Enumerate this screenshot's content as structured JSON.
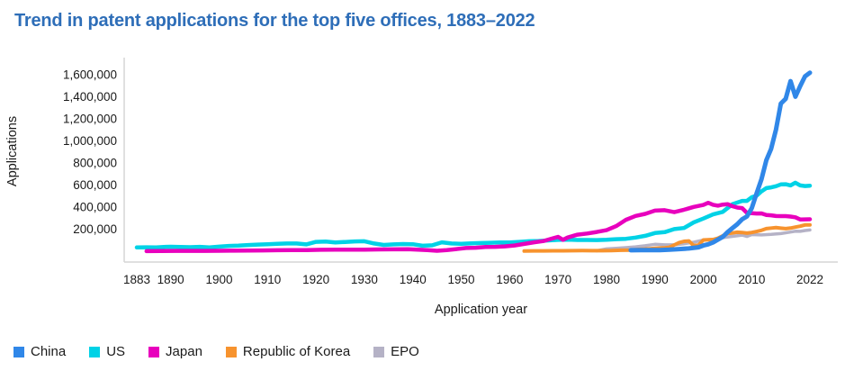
{
  "chart": {
    "title": "Trend in patent applications for the top five offices, 1883–2022",
    "xlabel": "Application year",
    "ylabel": "Applications"
  },
  "chart_data": {
    "type": "line",
    "title": "Trend in patent applications for the top five offices, 1883–2022",
    "xlabel": "Application year",
    "ylabel": "Applications",
    "x_range": [
      1883,
      2022
    ],
    "y_range": [
      0,
      1700000
    ],
    "grid": false,
    "legend_position": "bottom-left",
    "axis_color": "#d6d6d6",
    "text_color": "#1a1a1a",
    "title_color": "#2e6eb8",
    "y_ticks": [
      200000,
      400000,
      600000,
      800000,
      1000000,
      1200000,
      1400000,
      1600000
    ],
    "y_tick_labels": [
      "200,000",
      "400,000",
      "600,000",
      "800,000",
      "1,000,000",
      "1,200,000",
      "1,400,000",
      "1,600,000"
    ],
    "x_tick_years": [
      1883,
      1890,
      1900,
      1910,
      1920,
      1930,
      1940,
      1950,
      1960,
      1970,
      1980,
      1990,
      2000,
      2010,
      2022
    ],
    "x_tick_labels": [
      "1883",
      "1890",
      "1900",
      "1910",
      "1920",
      "1930",
      "1940",
      "1950",
      "1960",
      "1970",
      "1980",
      "1990",
      "2000",
      "2010",
      "2022"
    ],
    "z_order": [
      "US",
      "Japan",
      "EPO",
      "Republic of Korea",
      "China"
    ],
    "series": [
      {
        "name": "China",
        "color": "#3087e8",
        "stroke_width": 5,
        "points": [
          [
            1985,
            9000
          ],
          [
            1987,
            10000
          ],
          [
            1989,
            10000
          ],
          [
            1991,
            11000
          ],
          [
            1993,
            14000
          ],
          [
            1995,
            20000
          ],
          [
            1997,
            25000
          ],
          [
            1999,
            36000
          ],
          [
            2000,
            52000
          ],
          [
            2001,
            63000
          ],
          [
            2002,
            80000
          ],
          [
            2003,
            105000
          ],
          [
            2004,
            130000
          ],
          [
            2005,
            173000
          ],
          [
            2006,
            210000
          ],
          [
            2007,
            245000
          ],
          [
            2008,
            290000
          ],
          [
            2009,
            315000
          ],
          [
            2010,
            391000
          ],
          [
            2011,
            526000
          ],
          [
            2012,
            653000
          ],
          [
            2013,
            825000
          ],
          [
            2014,
            928000
          ],
          [
            2015,
            1102000
          ],
          [
            2016,
            1339000
          ],
          [
            2017,
            1382000
          ],
          [
            2018,
            1542000
          ],
          [
            2019,
            1401000
          ],
          [
            2020,
            1497000
          ],
          [
            2021,
            1586000
          ],
          [
            2022,
            1619000
          ]
        ]
      },
      {
        "name": "US",
        "color": "#00d2e6",
        "stroke_width": 4.5,
        "points": [
          [
            1883,
            34000
          ],
          [
            1885,
            36000
          ],
          [
            1887,
            35000
          ],
          [
            1889,
            40000
          ],
          [
            1890,
            41000
          ],
          [
            1892,
            38000
          ],
          [
            1894,
            37000
          ],
          [
            1896,
            40000
          ],
          [
            1898,
            34000
          ],
          [
            1900,
            42000
          ],
          [
            1902,
            48000
          ],
          [
            1904,
            51000
          ],
          [
            1906,
            56000
          ],
          [
            1908,
            60000
          ],
          [
            1910,
            64000
          ],
          [
            1912,
            68000
          ],
          [
            1914,
            70000
          ],
          [
            1916,
            70000
          ],
          [
            1918,
            62000
          ],
          [
            1920,
            85000
          ],
          [
            1922,
            87000
          ],
          [
            1924,
            80000
          ],
          [
            1926,
            84000
          ],
          [
            1928,
            89000
          ],
          [
            1930,
            91000
          ],
          [
            1932,
            70000
          ],
          [
            1934,
            57000
          ],
          [
            1936,
            62000
          ],
          [
            1938,
            65000
          ],
          [
            1940,
            64000
          ],
          [
            1942,
            50000
          ],
          [
            1944,
            54000
          ],
          [
            1946,
            81000
          ],
          [
            1948,
            70000
          ],
          [
            1950,
            67000
          ],
          [
            1952,
            72000
          ],
          [
            1954,
            74000
          ],
          [
            1956,
            77000
          ],
          [
            1958,
            80000
          ],
          [
            1960,
            80000
          ],
          [
            1962,
            85000
          ],
          [
            1964,
            91000
          ],
          [
            1966,
            93000
          ],
          [
            1968,
            98000
          ],
          [
            1970,
            103000
          ],
          [
            1972,
            105000
          ],
          [
            1974,
            102000
          ],
          [
            1976,
            102000
          ],
          [
            1978,
            101000
          ],
          [
            1980,
            104000
          ],
          [
            1982,
            109000
          ],
          [
            1984,
            113000
          ],
          [
            1986,
            124000
          ],
          [
            1988,
            140000
          ],
          [
            1990,
            165000
          ],
          [
            1992,
            173000
          ],
          [
            1994,
            201000
          ],
          [
            1996,
            211000
          ],
          [
            1998,
            261000
          ],
          [
            2000,
            296000
          ],
          [
            2002,
            334000
          ],
          [
            2004,
            357000
          ],
          [
            2006,
            426000
          ],
          [
            2008,
            456000
          ],
          [
            2009,
            456000
          ],
          [
            2010,
            490000
          ],
          [
            2011,
            504000
          ],
          [
            2012,
            543000
          ],
          [
            2013,
            572000
          ],
          [
            2014,
            579000
          ],
          [
            2015,
            589000
          ],
          [
            2016,
            606000
          ],
          [
            2017,
            607000
          ],
          [
            2018,
            597000
          ],
          [
            2019,
            621000
          ],
          [
            2020,
            597000
          ],
          [
            2021,
            591000
          ],
          [
            2022,
            594000
          ]
        ]
      },
      {
        "name": "Japan",
        "color": "#e800bd",
        "stroke_width": 4.5,
        "points": [
          [
            1885,
            1000
          ],
          [
            1888,
            2000
          ],
          [
            1891,
            3000
          ],
          [
            1894,
            3000
          ],
          [
            1897,
            3000
          ],
          [
            1900,
            4000
          ],
          [
            1903,
            5000
          ],
          [
            1906,
            6000
          ],
          [
            1909,
            7000
          ],
          [
            1912,
            9000
          ],
          [
            1915,
            10000
          ],
          [
            1918,
            11000
          ],
          [
            1921,
            13000
          ],
          [
            1924,
            14000
          ],
          [
            1927,
            15000
          ],
          [
            1930,
            15000
          ],
          [
            1933,
            16000
          ],
          [
            1936,
            17000
          ],
          [
            1939,
            18000
          ],
          [
            1941,
            15000
          ],
          [
            1943,
            10000
          ],
          [
            1945,
            4000
          ],
          [
            1947,
            11000
          ],
          [
            1949,
            20000
          ],
          [
            1951,
            29000
          ],
          [
            1953,
            32000
          ],
          [
            1955,
            38000
          ],
          [
            1957,
            40000
          ],
          [
            1959,
            44000
          ],
          [
            1961,
            52000
          ],
          [
            1963,
            66000
          ],
          [
            1965,
            81000
          ],
          [
            1967,
            92000
          ],
          [
            1969,
            118000
          ],
          [
            1970,
            131000
          ],
          [
            1971,
            104000
          ],
          [
            1972,
            125000
          ],
          [
            1974,
            150000
          ],
          [
            1976,
            161000
          ],
          [
            1978,
            175000
          ],
          [
            1980,
            191000
          ],
          [
            1982,
            228000
          ],
          [
            1984,
            285000
          ],
          [
            1986,
            320000
          ],
          [
            1988,
            339000
          ],
          [
            1990,
            368000
          ],
          [
            1992,
            372000
          ],
          [
            1994,
            354000
          ],
          [
            1996,
            376000
          ],
          [
            1998,
            402000
          ],
          [
            2000,
            420000
          ],
          [
            2001,
            439000
          ],
          [
            2002,
            421000
          ],
          [
            2003,
            413000
          ],
          [
            2004,
            423000
          ],
          [
            2005,
            427000
          ],
          [
            2006,
            408000
          ],
          [
            2007,
            396000
          ],
          [
            2008,
            391000
          ],
          [
            2009,
            348000
          ],
          [
            2010,
            345000
          ],
          [
            2011,
            342000
          ],
          [
            2012,
            343000
          ],
          [
            2013,
            328000
          ],
          [
            2014,
            326000
          ],
          [
            2015,
            319000
          ],
          [
            2016,
            318000
          ],
          [
            2017,
            318000
          ],
          [
            2018,
            314000
          ],
          [
            2019,
            308000
          ],
          [
            2020,
            288000
          ],
          [
            2021,
            289000
          ],
          [
            2022,
            290000
          ]
        ]
      },
      {
        "name": "Republic of Korea",
        "color": "#f7932e",
        "stroke_width": 4,
        "points": [
          [
            1963,
            2000
          ],
          [
            1965,
            3000
          ],
          [
            1967,
            3000
          ],
          [
            1969,
            4000
          ],
          [
            1971,
            4000
          ],
          [
            1973,
            5000
          ],
          [
            1975,
            6000
          ],
          [
            1977,
            5000
          ],
          [
            1979,
            5000
          ],
          [
            1981,
            6000
          ],
          [
            1983,
            9000
          ],
          [
            1985,
            11000
          ],
          [
            1987,
            17000
          ],
          [
            1989,
            23000
          ],
          [
            1990,
            26000
          ],
          [
            1992,
            31000
          ],
          [
            1993,
            36000
          ],
          [
            1994,
            57000
          ],
          [
            1995,
            78000
          ],
          [
            1996,
            90000
          ],
          [
            1997,
            93000
          ],
          [
            1998,
            51000
          ],
          [
            1999,
            55000
          ],
          [
            2000,
            102000
          ],
          [
            2001,
            104000
          ],
          [
            2002,
            106000
          ],
          [
            2003,
            118000
          ],
          [
            2004,
            140000
          ],
          [
            2005,
            161000
          ],
          [
            2006,
            166000
          ],
          [
            2007,
            172000
          ],
          [
            2008,
            170000
          ],
          [
            2009,
            164000
          ],
          [
            2010,
            170000
          ],
          [
            2011,
            179000
          ],
          [
            2012,
            189000
          ],
          [
            2013,
            205000
          ],
          [
            2014,
            210000
          ],
          [
            2015,
            214000
          ],
          [
            2016,
            209000
          ],
          [
            2017,
            205000
          ],
          [
            2018,
            210000
          ],
          [
            2019,
            219000
          ],
          [
            2020,
            227000
          ],
          [
            2021,
            238000
          ],
          [
            2022,
            238000
          ]
        ]
      },
      {
        "name": "EPO",
        "color": "#b5b2c6",
        "stroke_width": 3.5,
        "points": [
          [
            1978,
            4000
          ],
          [
            1980,
            21000
          ],
          [
            1982,
            26000
          ],
          [
            1984,
            33000
          ],
          [
            1986,
            40000
          ],
          [
            1988,
            50000
          ],
          [
            1990,
            63000
          ],
          [
            1992,
            58000
          ],
          [
            1994,
            58000
          ],
          [
            1996,
            68000
          ],
          [
            1998,
            82000
          ],
          [
            2000,
            101000
          ],
          [
            2002,
            107000
          ],
          [
            2004,
            123000
          ],
          [
            2006,
            135000
          ],
          [
            2008,
            146000
          ],
          [
            2009,
            134000
          ],
          [
            2010,
            151000
          ],
          [
            2012,
            148000
          ],
          [
            2014,
            153000
          ],
          [
            2016,
            160000
          ],
          [
            2018,
            174000
          ],
          [
            2019,
            181000
          ],
          [
            2020,
            180000
          ],
          [
            2021,
            188000
          ],
          [
            2022,
            193000
          ]
        ]
      }
    ]
  }
}
